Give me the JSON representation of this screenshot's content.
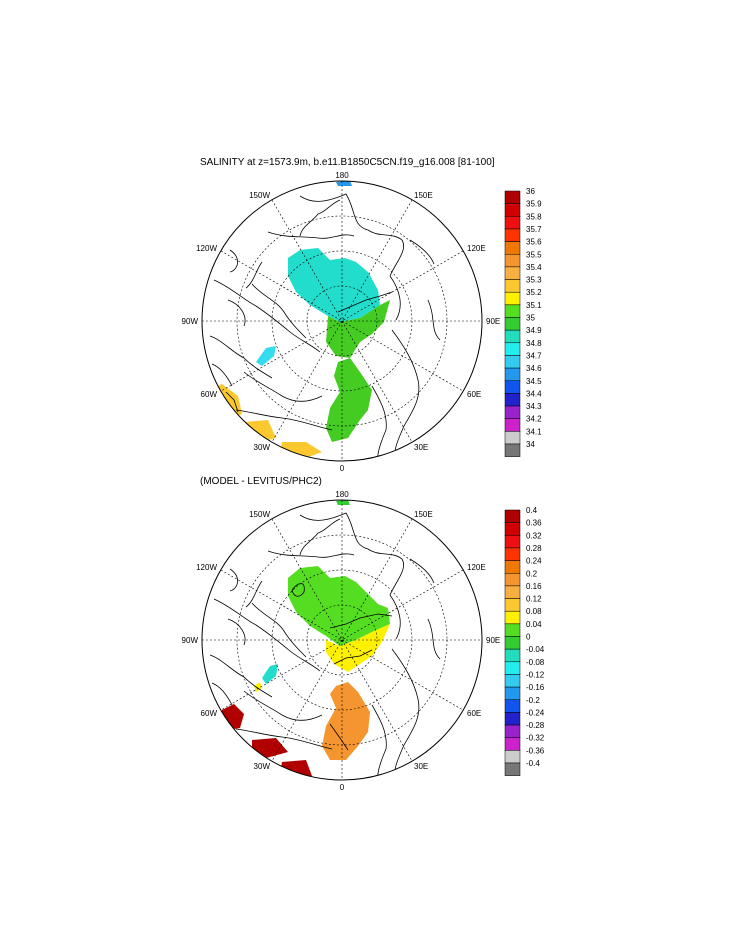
{
  "panels": [
    {
      "id": "salinity",
      "title": "SALINITY at z=1573.9m, b.e11.B1850C5CN.f19_g16.008 [81-100]",
      "lon_labels": [
        "180",
        "150E",
        "120E",
        "90E",
        "60E",
        "30E",
        "0",
        "30W",
        "60W",
        "90W",
        "120W",
        "150W"
      ],
      "colorbar": {
        "labels": [
          "36",
          "35.9",
          "35.8",
          "35.7",
          "35.6",
          "35.5",
          "35.4",
          "35.3",
          "35.2",
          "35.1",
          "35",
          "34.9",
          "34.8",
          "34.7",
          "34.6",
          "34.5",
          "34.4",
          "34.3",
          "34.2",
          "34.1",
          "34"
        ],
        "colors": [
          "#b00000",
          "#d00000",
          "#ee1010",
          "#ff3300",
          "#f07800",
          "#f59530",
          "#f7b040",
          "#fcc830",
          "#fdf000",
          "#55dd22",
          "#33cc33",
          "#22ddbb",
          "#22eeee",
          "#33ccee",
          "#2299ee",
          "#1155ee",
          "#2222cc",
          "#9922cc",
          "#cc22cc",
          "#cccccc",
          "#777777"
        ]
      }
    },
    {
      "id": "difference",
      "title": "(MODEL - LEVITUS/PHC2)",
      "lon_labels": [
        "180",
        "150E",
        "120E",
        "90E",
        "60E",
        "30E",
        "0",
        "30W",
        "60W",
        "90W",
        "120W",
        "150W"
      ],
      "colorbar": {
        "labels": [
          "0.4",
          "0.36",
          "0.32",
          "0.28",
          "0.24",
          "0.2",
          "0.16",
          "0.12",
          "0.08",
          "0.04",
          "0",
          "-0.04",
          "-0.08",
          "-0.12",
          "-0.16",
          "-0.2",
          "-0.24",
          "-0.28",
          "-0.32",
          "-0.36",
          "-0.4"
        ],
        "colors": [
          "#b00000",
          "#d00000",
          "#ee1010",
          "#ff3300",
          "#f07800",
          "#f59530",
          "#f7b040",
          "#fcc830",
          "#fdf000",
          "#55dd22",
          "#33cc33",
          "#22ddbb",
          "#22eeee",
          "#33ccee",
          "#2299ee",
          "#1155ee",
          "#2222cc",
          "#9922cc",
          "#cc22cc",
          "#cccccc",
          "#777777"
        ]
      }
    }
  ]
}
